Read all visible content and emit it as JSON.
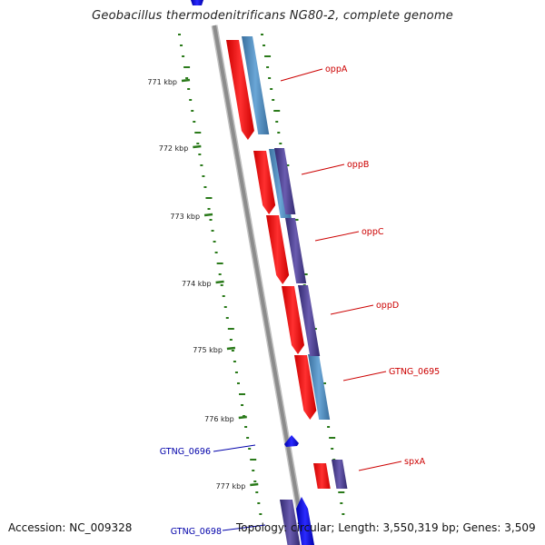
{
  "title": "Geobacillus thermodenitrificans NG80-2, complete genome",
  "footer": {
    "accession": "Accession: NC_009328",
    "stats": "Topology: circular; Length: 3,550,319 bp; Genes: 3,509"
  },
  "ticks": [
    "771 kbp",
    "772 kbp",
    "773 kbp",
    "774 kbp",
    "775 kbp",
    "776 kbp",
    "777 kbp"
  ],
  "genes": [
    {
      "label": "oppA",
      "strand": "minus",
      "color": "#cc0000"
    },
    {
      "label": "oppB",
      "strand": "minus",
      "color": "#cc0000"
    },
    {
      "label": "oppC",
      "strand": "minus",
      "color": "#cc0000"
    },
    {
      "label": "oppD",
      "strand": "minus",
      "color": "#cc0000"
    },
    {
      "label": "GTNG_0695",
      "strand": "minus",
      "color": "#cc0000"
    },
    {
      "label": "spxA",
      "strand": "minus",
      "color": "#cc0000"
    },
    {
      "label": "GTNG_0696",
      "strand": "plus",
      "color": "#0000aa"
    },
    {
      "label": "GTNG_0698",
      "strand": "plus",
      "color": "#0000aa"
    }
  ],
  "colors": {
    "backbone": "#8c8c8c",
    "cds_red": "#ff0000",
    "cds_blue": "#0000ee",
    "feature_blue": "#4a86b8",
    "feature_purple": "#4a3d8c",
    "gc_track": "#2a7a1a"
  }
}
